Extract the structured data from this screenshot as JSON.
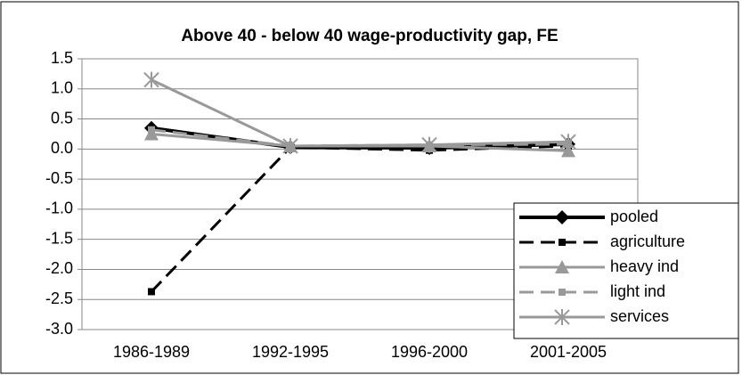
{
  "chart_data": {
    "type": "line",
    "title": "Above 40 - below 40 wage-productivity gap, FE",
    "categories": [
      "1986-1989",
      "1992-1995",
      "1996-2000",
      "2001-2005"
    ],
    "series": [
      {
        "name": "pooled",
        "color": "#000000",
        "dash": "solid",
        "marker": "diamond",
        "values": [
          0.35,
          0.03,
          0.02,
          0.08
        ]
      },
      {
        "name": "agriculture",
        "color": "#000000",
        "dash": "dashed",
        "marker": "square",
        "values": [
          -2.37,
          0.03,
          -0.02,
          0.05
        ]
      },
      {
        "name": "heavy ind",
        "color": "#999999",
        "dash": "solid",
        "marker": "triangle",
        "values": [
          0.25,
          0.05,
          0.05,
          -0.03
        ]
      },
      {
        "name": "light ind",
        "color": "#999999",
        "dash": "dashed",
        "marker": "square",
        "values": [
          0.32,
          0.05,
          0.07,
          0.08
        ]
      },
      {
        "name": "services",
        "color": "#999999",
        "dash": "solid",
        "marker": "asterisk",
        "values": [
          1.15,
          0.05,
          0.07,
          0.12
        ]
      }
    ],
    "ylim": [
      -3,
      1.5
    ],
    "yticks": [
      1.5,
      {
        "value": 1,
        "label": "1.0"
      },
      0.5,
      {
        "value": 0,
        "label": "0.0"
      },
      -0.5,
      {
        "value": -1,
        "label": "-1.0"
      },
      -1.5,
      {
        "value": -2,
        "label": "-2.0"
      },
      -2.5,
      {
        "value": -3,
        "label": "-3.0"
      }
    ],
    "grid": true,
    "legend": "right"
  }
}
